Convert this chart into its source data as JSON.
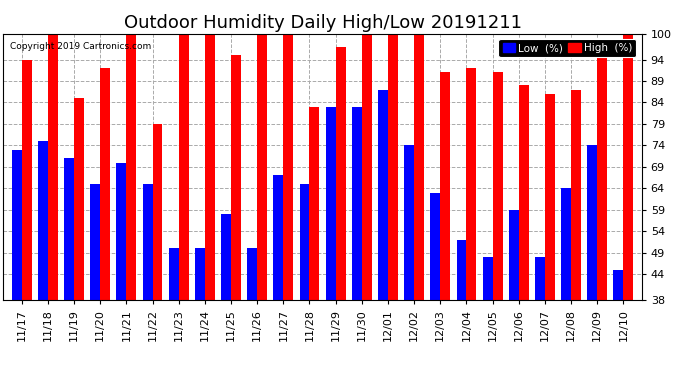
{
  "title": "Outdoor Humidity Daily High/Low 20191211",
  "copyright": "Copyright 2019 Cartronics.com",
  "dates": [
    "11/17",
    "11/18",
    "11/19",
    "11/20",
    "11/21",
    "11/22",
    "11/23",
    "11/24",
    "11/25",
    "11/26",
    "11/27",
    "11/28",
    "11/29",
    "11/30",
    "12/01",
    "12/02",
    "12/03",
    "12/04",
    "12/05",
    "12/06",
    "12/07",
    "12/08",
    "12/09",
    "12/10"
  ],
  "high_values": [
    94,
    100,
    85,
    92,
    100,
    79,
    100,
    100,
    95,
    100,
    100,
    83,
    97,
    100,
    100,
    100,
    91,
    92,
    91,
    88,
    86,
    87,
    95,
    100
  ],
  "low_values": [
    73,
    75,
    71,
    65,
    70,
    65,
    50,
    50,
    58,
    50,
    67,
    65,
    83,
    83,
    87,
    74,
    63,
    52,
    48,
    59,
    48,
    64,
    74,
    45
  ],
  "high_color": "#ff0000",
  "low_color": "#0000ff",
  "bg_color": "#ffffff",
  "grid_color": "#aaaaaa",
  "ylim_min": 38,
  "ylim_max": 100,
  "yticks": [
    38,
    44,
    49,
    54,
    59,
    64,
    69,
    74,
    79,
    84,
    89,
    94,
    100
  ],
  "title_fontsize": 13,
  "tick_fontsize": 8,
  "legend_labels": [
    "Low  (%)",
    "High  (%)"
  ],
  "bar_width": 0.38
}
